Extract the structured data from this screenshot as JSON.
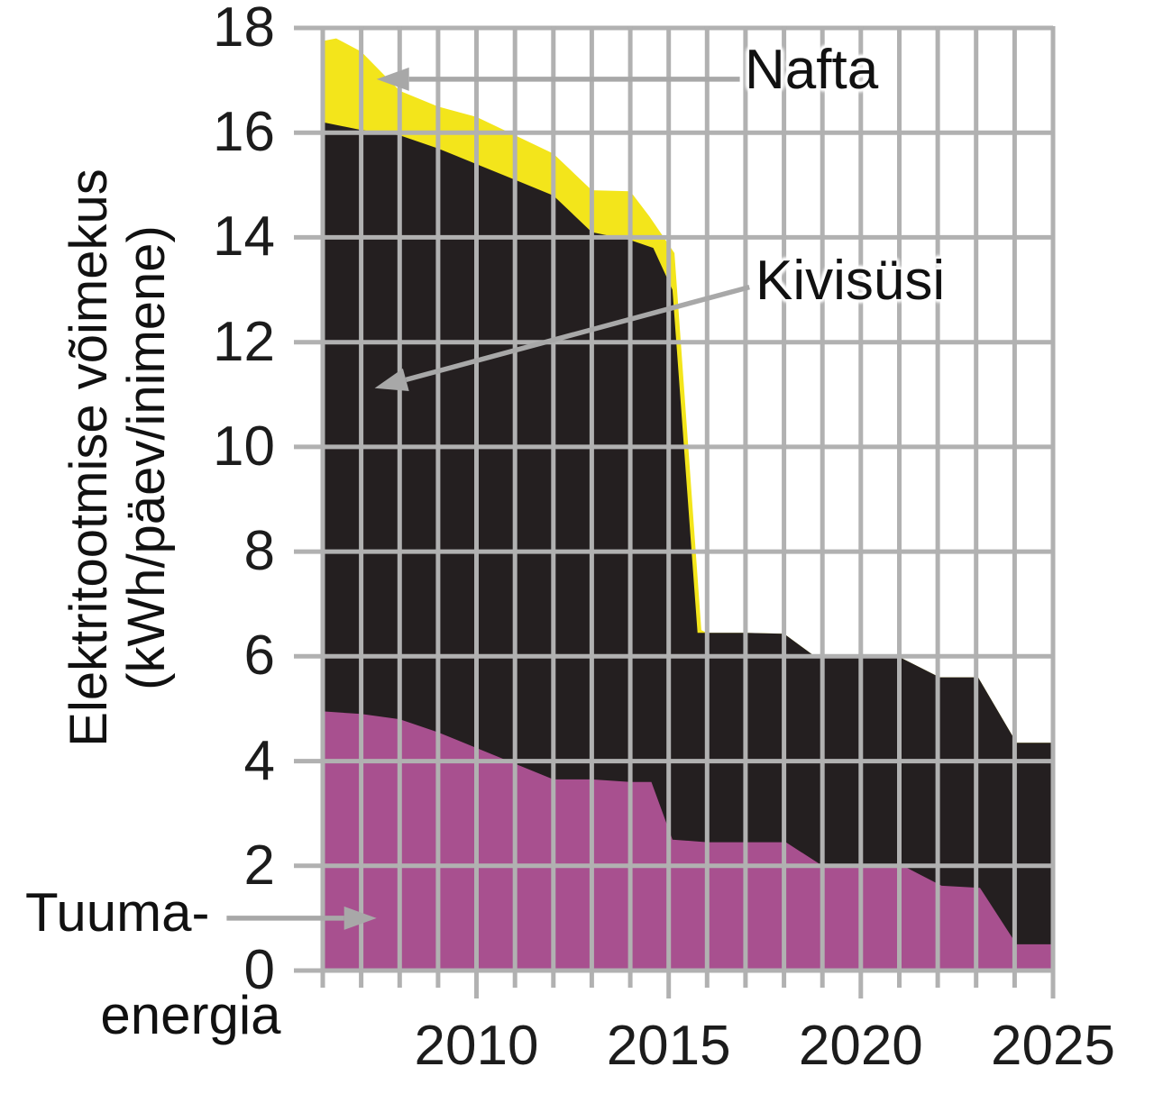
{
  "chart_data": {
    "type": "area",
    "stacked": true,
    "title": "",
    "ylabel_line1": "Elektritootmise võimekus",
    "ylabel_line2": "(kWh/päev/inimene)",
    "xlabel": "",
    "x_range": [
      2006,
      2025
    ],
    "y_range": [
      0,
      18
    ],
    "x_minor_tick_interval": 1,
    "x_major_tick_interval": 5,
    "x_labeled_ticks": [
      "2010",
      "2015",
      "2020",
      "2025"
    ],
    "y_ticks": [
      "0",
      "2",
      "4",
      "6",
      "8",
      "10",
      "12",
      "14",
      "16",
      "18"
    ],
    "grid": true,
    "grid_color": "#b1b1b1",
    "arrow_color": "#a8a8a8",
    "background_color": "#ffffff",
    "legend_position": "annotated-arrows",
    "years": [
      2006,
      2007,
      2008,
      2009,
      2010,
      2011,
      2012,
      2013,
      2014,
      2015,
      2016,
      2017,
      2018,
      2019,
      2020,
      2021,
      2022,
      2023,
      2024,
      2025
    ],
    "series": [
      {
        "name": "Tuumaenergia",
        "color": "#a8508f",
        "values": [
          4.95,
          4.9,
          4.8,
          4.55,
          4.25,
          3.95,
          3.65,
          3.65,
          3.6,
          2.55,
          2.45,
          2.45,
          2.45,
          2.0,
          2.0,
          2.0,
          1.6,
          1.6,
          0.5,
          0.5
        ]
      },
      {
        "name": "Kivisüsi",
        "color": "#241f20",
        "values": [
          11.25,
          11.15,
          11.15,
          11.15,
          11.15,
          11.15,
          11.15,
          10.45,
          10.35,
          10.55,
          4.0,
          4.0,
          4.0,
          4.0,
          4.0,
          3.95,
          4.0,
          4.0,
          3.85,
          3.85
        ]
      },
      {
        "name": "Nafta",
        "color": "#f3e51b",
        "values": [
          1.6,
          1.5,
          0.85,
          0.8,
          0.9,
          0.85,
          0.8,
          0.8,
          0.9,
          0.75,
          0,
          0,
          0,
          0,
          0,
          0,
          0,
          0,
          0,
          0
        ]
      }
    ],
    "outlines": {
      "nafta_top": {
        "x": [
          2006,
          2006.35,
          2007,
          2008,
          2009,
          2010,
          2011,
          2012,
          2013,
          2014,
          2014.5,
          2015.15,
          2015.85,
          2016,
          2017,
          2018,
          2018.8,
          2021.05,
          2022.05,
          2023.05,
          2024.05,
          2025
        ],
        "y": [
          17.75,
          17.8,
          17.55,
          16.8,
          16.5,
          16.3,
          15.95,
          15.6,
          14.9,
          14.88,
          14.4,
          13.7,
          6.5,
          6.45,
          6.45,
          6.43,
          6.0,
          5.97,
          5.6,
          5.6,
          4.35,
          4.35
        ]
      },
      "kivisusi_top": {
        "x": [
          2006,
          2007,
          2008,
          2009,
          2010,
          2011,
          2012,
          2013,
          2014,
          2014.6,
          2015.1,
          2015.75,
          2016,
          2017,
          2018,
          2018.8,
          2021.05,
          2022.05,
          2023.05,
          2024.05,
          2025
        ],
        "y": [
          16.2,
          16.05,
          15.95,
          15.7,
          15.4,
          15.1,
          14.8,
          14.1,
          13.95,
          13.8,
          13.0,
          6.45,
          6.45,
          6.45,
          6.43,
          6.0,
          5.97,
          5.6,
          5.6,
          4.35,
          4.35
        ]
      },
      "tuuma_top": {
        "x": [
          2006,
          2007,
          2008,
          2009,
          2010,
          2011,
          2012,
          2013,
          2014,
          2014.55,
          2015.1,
          2016,
          2017,
          2018.05,
          2019,
          2020,
          2021.1,
          2022.1,
          2023.1,
          2024.05,
          2025
        ],
        "y": [
          4.95,
          4.9,
          4.8,
          4.55,
          4.25,
          3.95,
          3.65,
          3.65,
          3.6,
          3.6,
          2.5,
          2.45,
          2.45,
          2.45,
          2.0,
          2.0,
          2.0,
          1.62,
          1.58,
          0.5,
          0.5
        ]
      }
    },
    "labels": {
      "nafta": "Nafta",
      "kivisusi": "Kivisüsi",
      "tuuma_line1": "Tuuma-",
      "tuuma_line2": "energia"
    },
    "annotations": [
      {
        "id": "nafta",
        "series": "Nafta",
        "line": {
          "x1": 2016.85,
          "y1": 17.02,
          "x2": 2007.4,
          "y2": 17.02
        }
      },
      {
        "id": "kivisusi",
        "series": "Kivisüsi",
        "line": {
          "x1": 2017.1,
          "y1": 13.05,
          "x2": 2007.35,
          "y2": 11.12
        }
      },
      {
        "id": "tuuma",
        "series": "Tuumaenergia",
        "line": {
          "x1": 2003.5,
          "y1": 1.0,
          "x2": 2007.4,
          "y2": 1.0
        }
      }
    ]
  }
}
